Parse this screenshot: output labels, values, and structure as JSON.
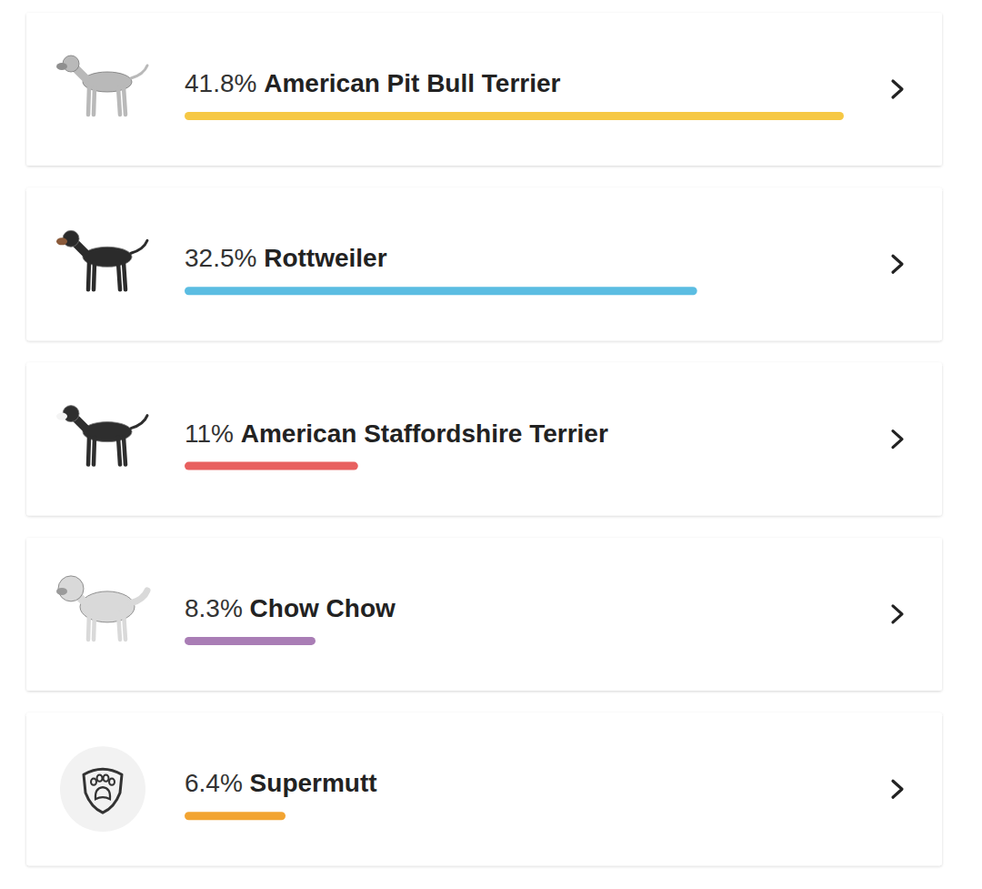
{
  "chart_data": {
    "type": "bar",
    "orientation": "horizontal",
    "categories": [
      "American Pit Bull Terrier",
      "Rottweiler",
      "American Staffordshire Terrier",
      "Chow Chow",
      "Supermutt"
    ],
    "values": [
      41.8,
      32.5,
      11,
      8.3,
      6.4
    ],
    "value_labels": [
      "41.8%",
      "32.5%",
      "11%",
      "8.3%",
      "6.4%"
    ],
    "colors": [
      "#f6c844",
      "#5bbde2",
      "#e8605f",
      "#a97db5",
      "#f2a432"
    ],
    "xlim": [
      0,
      41.8
    ],
    "data_labels": true,
    "tick_labels": false
  }
}
